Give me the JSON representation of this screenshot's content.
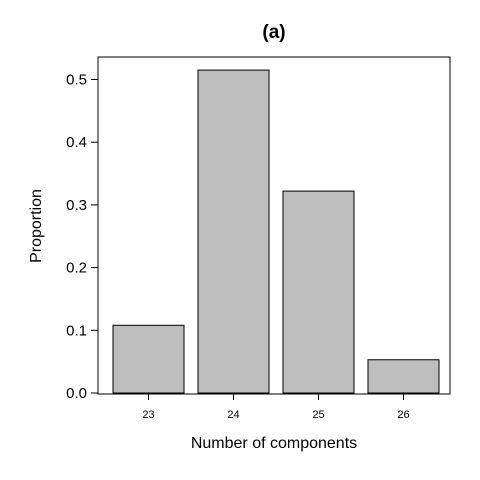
{
  "chart_data": {
    "type": "bar",
    "title": "(a)",
    "xlabel": "Number of components",
    "ylabel": "Proportion",
    "categories": [
      "23",
      "24",
      "25",
      "26"
    ],
    "values": [
      0.108,
      0.515,
      0.322,
      0.053
    ],
    "ylim": [
      0,
      0.55
    ],
    "yticks": [
      "0.0",
      "0.1",
      "0.2",
      "0.3",
      "0.4",
      "0.5"
    ],
    "grid": false,
    "bar_color": "#bebebe",
    "bar_edge_color": "#000000"
  }
}
